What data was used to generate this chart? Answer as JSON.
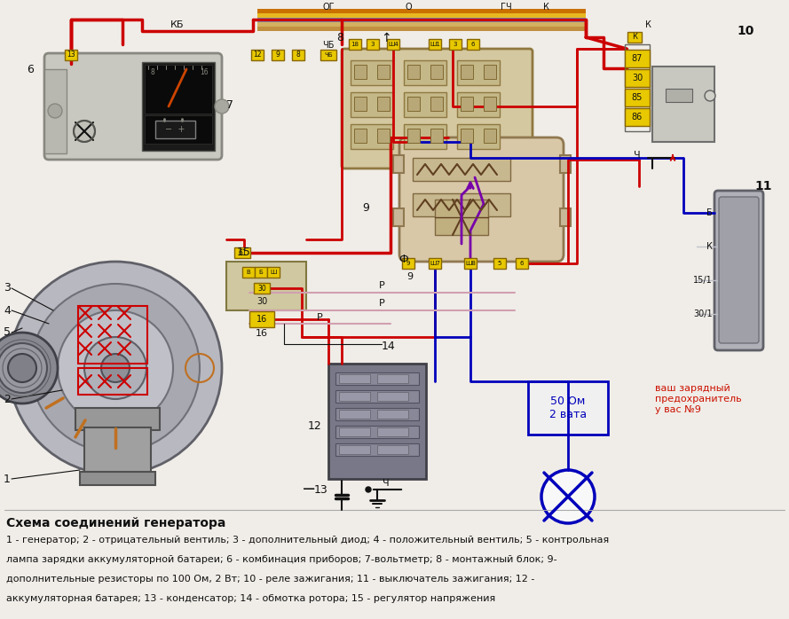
{
  "title": "Схема соединений генератора",
  "desc1": "1 - генератор; 2 - отрицательный вентиль; 3 - дополнительный диод; 4 - положительный вентиль; 5 - контрольная",
  "desc2": "лампа зарядки аккумуляторной батареи; 6 - комбинация приборов; 7-вольтметр; 8 - монтажный блок; 9-",
  "desc3": "дополнительные резисторы по 100 Ом, 2 Вт; 10 - реле зажигания; 11 - выключатель зажигания; 12 -",
  "desc4": "аккумуляторная батарея; 13 - конденсатор; 14 - обмотка ротора; 15 - регулятор напряжения",
  "bg": "#f0ede8",
  "R": "#cc0000",
  "B": "#0000bb",
  "P": "#7700aa",
  "Y": "#e8c800",
  "BK": "#111111",
  "GR": "#a8a8b0",
  "TN": "#c8b888",
  "LG": "#c8c8c0"
}
